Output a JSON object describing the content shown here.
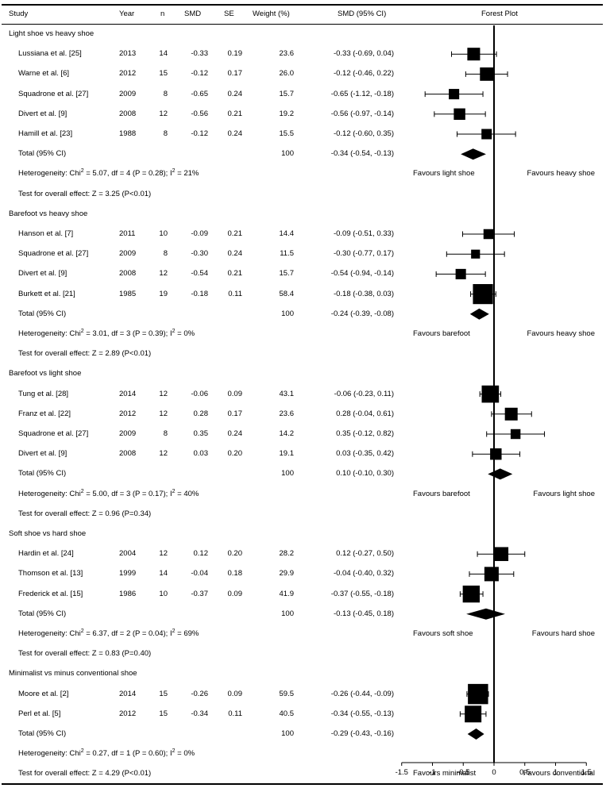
{
  "header": {
    "study": "Study",
    "year": "Year",
    "n": "n",
    "smd": "SMD",
    "se": "SE",
    "weight": "Weight (%)",
    "ci": "SMD (95% CI)",
    "forest": "Forest Plot"
  },
  "groups": [
    {
      "title": "Light shoe vs heavy shoe",
      "studies": [
        {
          "name": "Lussiana et al. [25]",
          "year": "2013",
          "n": "14",
          "smd": "-0.33",
          "se": "0.19",
          "weight": "23.6",
          "ci": "-0.33 (-0.69, 0.04)"
        },
        {
          "name": "Warne et al. [6]",
          "year": "2012",
          "n": "15",
          "smd": "-0.12",
          "se": "0.17",
          "weight": "26.0",
          "ci": "-0.12 (-0.46, 0.22)"
        },
        {
          "name": "Squadrone et al. [27]",
          "year": "2009",
          "n": "8",
          "smd": "-0.65",
          "se": "0.24",
          "weight": "15.7",
          "ci": "-0.65 (-1.12, -0.18)"
        },
        {
          "name": "Divert et al. [9]",
          "year": "2008",
          "n": "12",
          "smd": "-0.56",
          "se": "0.21",
          "weight": "19.2",
          "ci": "-0.56 (-0.97, -0.14)"
        },
        {
          "name": "Hamill et al. [23]",
          "year": "1988",
          "n": "8",
          "smd": "-0.12",
          "se": "0.24",
          "weight": "15.5",
          "ci": "-0.12 (-0.60, 0.35)"
        }
      ],
      "total": {
        "label": "Total (95% CI)",
        "weight": "100",
        "ci": "-0.34 (-0.54, -0.13)"
      },
      "het_pre": "Heterogeneity: Chi",
      "het_post": " = 5.07, df = 4 (P = 0.28); I",
      "het_end": " = 21%",
      "overall": "Test for overall effect: Z = 3.25 (P<0.01)",
      "fav_left": "Favours light shoe",
      "fav_right": "Favours heavy shoe"
    },
    {
      "title": "Barefoot vs heavy shoe",
      "studies": [
        {
          "name": "Hanson et al. [7]",
          "year": "2011",
          "n": "10",
          "smd": "-0.09",
          "se": "0.21",
          "weight": "14.4",
          "ci": "-0.09 (-0.51, 0.33)"
        },
        {
          "name": "Squadrone et al. [27]",
          "year": "2009",
          "n": "8",
          "smd": "-0.30",
          "se": "0.24",
          "weight": "11.5",
          "ci": "-0.30 (-0.77, 0.17)"
        },
        {
          "name": "Divert et al. [9]",
          "year": "2008",
          "n": "12",
          "smd": "-0.54",
          "se": "0.21",
          "weight": "15.7",
          "ci": "-0.54 (-0.94, -0.14)"
        },
        {
          "name": "Burkett et al. [21]",
          "year": "1985",
          "n": "19",
          "smd": "-0.18",
          "se": "0.11",
          "weight": "58.4",
          "ci": "-0.18 (-0.38, 0.03)"
        }
      ],
      "total": {
        "label": "Total (95% CI)",
        "weight": "100",
        "ci": "-0.24 (-0.39, -0.08)"
      },
      "het_pre": "Heterogeneity: Chi",
      "het_post": " = 3.01, df = 3 (P = 0.39); I",
      "het_end": " = 0%",
      "overall": "Test for overall effect: Z = 2.89 (P<0.01)",
      "fav_left": "Favours barefoot",
      "fav_right": "Favours heavy shoe"
    },
    {
      "title": "Barefoot vs light shoe",
      "studies": [
        {
          "name": "Tung et al. [28]",
          "year": "2014",
          "n": "12",
          "smd": "-0.06",
          "se": "0.09",
          "weight": "43.1",
          "ci": "-0.06 (-0.23, 0.11)"
        },
        {
          "name": "Franz et al. [22]",
          "year": "2012",
          "n": "12",
          "smd": "0.28",
          "se": "0.17",
          "weight": "23.6",
          "ci": "0.28 (-0.04, 0.61)"
        },
        {
          "name": "Squadrone et al. [27]",
          "year": "2009",
          "n": "8",
          "smd": "0.35",
          "se": "0.24",
          "weight": "14.2",
          "ci": "0.35 (-0.12, 0.82)"
        },
        {
          "name": "Divert et al. [9]",
          "year": "2008",
          "n": "12",
          "smd": "0.03",
          "se": "0.20",
          "weight": "19.1",
          "ci": "0.03 (-0.35, 0.42)"
        }
      ],
      "total": {
        "label": "Total (95% CI)",
        "weight": "100",
        "ci": "0.10 (-0.10, 0.30)"
      },
      "het_pre": "Heterogeneity: Chi",
      "het_post": " = 5.00, df = 3 (P = 0.17); I",
      "het_end": " = 40%",
      "overall": "Test for overall effect: Z = 0.96 (P=0.34)",
      "fav_left": "Favours barefoot",
      "fav_right": "Favours light shoe"
    },
    {
      "title": "Soft shoe vs hard shoe",
      "studies": [
        {
          "name": "Hardin et al. [24]",
          "year": "2004",
          "n": "12",
          "smd": "0.12",
          "se": "0.20",
          "weight": "28.2",
          "ci": "0.12 (-0.27, 0.50)"
        },
        {
          "name": "Thomson et al. [13]",
          "year": "1999",
          "n": "14",
          "smd": "-0.04",
          "se": "0.18",
          "weight": "29.9",
          "ci": "-0.04 (-0.40, 0.32)"
        },
        {
          "name": "Frederick et al. [15]",
          "year": "1986",
          "n": "10",
          "smd": "-0.37",
          "se": "0.09",
          "weight": "41.9",
          "ci": "-0.37 (-0.55, -0.18)"
        }
      ],
      "total": {
        "label": "Total (95% CI)",
        "weight": "100",
        "ci": "-0.13 (-0.45, 0.18)"
      },
      "het_pre": "Heterogeneity: Chi",
      "het_post": " = 6.37, df = 2 (P = 0.04); I",
      "het_end": " = 69%",
      "overall": "Test for overall effect: Z = 0.83 (P=0.40)",
      "fav_left": "Favours soft shoe",
      "fav_right": "Favours hard shoe"
    },
    {
      "title": "Minimalist vs minus conventional shoe",
      "studies": [
        {
          "name": "Moore et al. [2]",
          "year": "2014",
          "n": "15",
          "smd": "-0.26",
          "se": "0.09",
          "weight": "59.5",
          "ci": "-0.26 (-0.44, -0.09)"
        },
        {
          "name": "Perl et al. [5]",
          "year": "2012",
          "n": "15",
          "smd": "-0.34",
          "se": "0.11",
          "weight": "40.5",
          "ci": "-0.34 (-0.55, -0.13)"
        }
      ],
      "total": {
        "label": "Total (95% CI)",
        "weight": "100",
        "ci": "-0.29 (-0.43, -0.16)"
      },
      "het_pre": "Heterogeneity: Chi",
      "het_post": " = 0.27, df = 1 (P = 0.60); I",
      "het_end": " = 0%",
      "overall": "Test for overall effect: Z = 4.29 (P<0.01)",
      "fav_left": "Favours minimalist",
      "fav_right": "Favours conventional"
    }
  ],
  "chart_data": {
    "type": "forest",
    "title": "Forest Plot",
    "xlim": [
      -1.5,
      1.5
    ],
    "ticks": [
      "-1.5",
      "-1",
      "-0.5",
      "0",
      "0.5",
      "1",
      "1.5"
    ],
    "reference_line": 0,
    "series": [
      {
        "name": "Light shoe vs heavy shoe",
        "studies": [
          {
            "est": -0.33,
            "lo": -0.69,
            "hi": 0.04,
            "weight": 23.6
          },
          {
            "est": -0.12,
            "lo": -0.46,
            "hi": 0.22,
            "weight": 26.0
          },
          {
            "est": -0.65,
            "lo": -1.12,
            "hi": -0.18,
            "weight": 15.7
          },
          {
            "est": -0.56,
            "lo": -0.97,
            "hi": -0.14,
            "weight": 19.2
          },
          {
            "est": -0.12,
            "lo": -0.6,
            "hi": 0.35,
            "weight": 15.5
          }
        ],
        "total": {
          "est": -0.34,
          "lo": -0.54,
          "hi": -0.13
        }
      },
      {
        "name": "Barefoot vs heavy shoe",
        "studies": [
          {
            "est": -0.09,
            "lo": -0.51,
            "hi": 0.33,
            "weight": 14.4
          },
          {
            "est": -0.3,
            "lo": -0.77,
            "hi": 0.17,
            "weight": 11.5
          },
          {
            "est": -0.54,
            "lo": -0.94,
            "hi": -0.14,
            "weight": 15.7
          },
          {
            "est": -0.18,
            "lo": -0.38,
            "hi": 0.03,
            "weight": 58.4
          }
        ],
        "total": {
          "est": -0.24,
          "lo": -0.39,
          "hi": -0.08
        }
      },
      {
        "name": "Barefoot vs light shoe",
        "studies": [
          {
            "est": -0.06,
            "lo": -0.23,
            "hi": 0.11,
            "weight": 43.1
          },
          {
            "est": 0.28,
            "lo": -0.04,
            "hi": 0.61,
            "weight": 23.6
          },
          {
            "est": 0.35,
            "lo": -0.12,
            "hi": 0.82,
            "weight": 14.2
          },
          {
            "est": 0.03,
            "lo": -0.35,
            "hi": 0.42,
            "weight": 19.1
          }
        ],
        "total": {
          "est": 0.1,
          "lo": -0.1,
          "hi": 0.3
        }
      },
      {
        "name": "Soft shoe vs hard shoe",
        "studies": [
          {
            "est": 0.12,
            "lo": -0.27,
            "hi": 0.5,
            "weight": 28.2
          },
          {
            "est": -0.04,
            "lo": -0.4,
            "hi": 0.32,
            "weight": 29.9
          },
          {
            "est": -0.37,
            "lo": -0.55,
            "hi": -0.18,
            "weight": 41.9
          }
        ],
        "total": {
          "est": -0.13,
          "lo": -0.45,
          "hi": 0.18
        }
      },
      {
        "name": "Minimalist vs minus conventional shoe",
        "studies": [
          {
            "est": -0.26,
            "lo": -0.44,
            "hi": -0.09,
            "weight": 59.5
          },
          {
            "est": -0.34,
            "lo": -0.55,
            "hi": -0.13,
            "weight": 40.5
          }
        ],
        "total": {
          "est": -0.29,
          "lo": -0.43,
          "hi": -0.16
        }
      }
    ]
  }
}
